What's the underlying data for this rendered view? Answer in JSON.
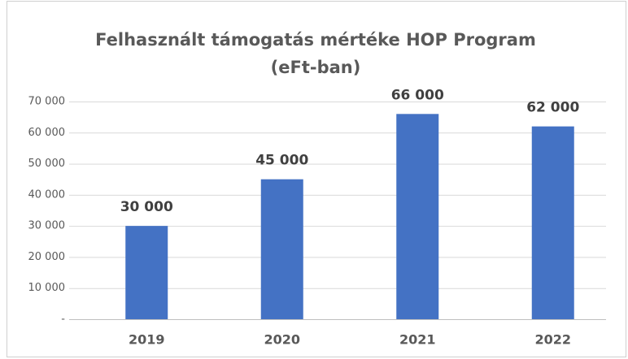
{
  "chart_data": {
    "type": "bar",
    "title": [
      "Felhasznált támogatás mértéke HOP Program",
      "(eFt-ban)"
    ],
    "categories": [
      "2019",
      "2020",
      "2021",
      "2022"
    ],
    "values": [
      30000,
      45000,
      66000,
      62000
    ],
    "value_labels": [
      "30 000",
      "45 000",
      "66 000",
      "62 000"
    ],
    "color": "#4472c4",
    "ylim": [
      0,
      70000
    ],
    "yticks": [
      {
        "value": 0,
        "label": "-"
      },
      {
        "value": 10000,
        "label": "10 000"
      },
      {
        "value": 20000,
        "label": "20 000"
      },
      {
        "value": 30000,
        "label": "30 000"
      },
      {
        "value": 40000,
        "label": "40 000"
      },
      {
        "value": 50000,
        "label": "50 000"
      },
      {
        "value": 60000,
        "label": "60 000"
      },
      {
        "value": 70000,
        "label": "70 000"
      }
    ],
    "grid": true
  }
}
